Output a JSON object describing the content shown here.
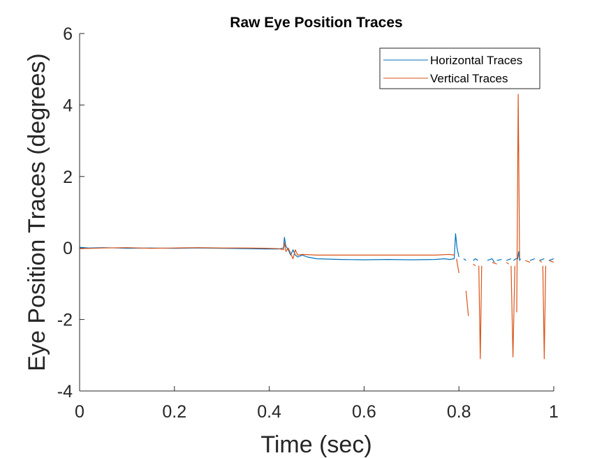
{
  "chart_data": {
    "type": "line",
    "title": "Raw Eye Position Traces",
    "xlabel": "Time (sec)",
    "ylabel": "Eye Position Traces (degrees)",
    "xlim": [
      0,
      1
    ],
    "ylim": [
      -4,
      6
    ],
    "xticks": [
      0,
      0.2,
      0.4,
      0.6,
      0.8,
      1
    ],
    "xtick_labels": [
      "0",
      "0.2",
      "0.4",
      "0.6",
      "0.8",
      "1"
    ],
    "yticks": [
      -4,
      -2,
      0,
      2,
      4,
      6
    ],
    "ytick_labels": [
      "-4",
      "-2",
      "0",
      "2",
      "4",
      "6"
    ],
    "grid": false,
    "legend_position": "top-right",
    "series": [
      {
        "name": "Horizontal Traces",
        "color": "#0072BD",
        "segments": [
          [
            [
              0.0,
              0.02
            ],
            [
              0.02,
              0.0
            ],
            [
              0.05,
              0.01
            ],
            [
              0.08,
              0.0
            ],
            [
              0.1,
              -0.01
            ],
            [
              0.15,
              0.0
            ],
            [
              0.2,
              -0.01
            ],
            [
              0.25,
              0.0
            ],
            [
              0.3,
              -0.01
            ],
            [
              0.35,
              -0.02
            ],
            [
              0.4,
              -0.03
            ],
            [
              0.42,
              -0.03
            ],
            [
              0.43,
              0.0
            ],
            [
              0.432,
              0.3
            ],
            [
              0.435,
              0.05
            ],
            [
              0.44,
              -0.05
            ],
            [
              0.445,
              -0.2
            ],
            [
              0.45,
              -0.05
            ],
            [
              0.455,
              -0.2
            ],
            [
              0.46,
              -0.25
            ],
            [
              0.47,
              -0.2
            ],
            [
              0.48,
              -0.25
            ],
            [
              0.5,
              -0.3
            ],
            [
              0.55,
              -0.32
            ],
            [
              0.6,
              -0.33
            ],
            [
              0.65,
              -0.32
            ],
            [
              0.7,
              -0.33
            ],
            [
              0.75,
              -0.32
            ],
            [
              0.77,
              -0.3
            ],
            [
              0.78,
              -0.32
            ],
            [
              0.79,
              -0.3
            ],
            [
              0.793,
              0.4
            ],
            [
              0.796,
              0.0
            ],
            [
              0.8,
              -0.25
            ]
          ],
          [
            [
              0.81,
              -0.3
            ],
            [
              0.815,
              -0.35
            ]
          ],
          [
            [
              0.83,
              -0.35
            ],
            [
              0.835,
              -0.3
            ],
            [
              0.84,
              -0.35
            ]
          ],
          [
            [
              0.86,
              -0.35
            ],
            [
              0.87,
              -0.3
            ],
            [
              0.875,
              -0.4
            ]
          ],
          [
            [
              0.88,
              -0.35
            ],
            [
              0.89,
              -0.32
            ]
          ],
          [
            [
              0.9,
              -0.35
            ],
            [
              0.91,
              -0.3
            ]
          ],
          [
            [
              0.915,
              -0.35
            ],
            [
              0.92,
              -0.3
            ],
            [
              0.924,
              -0.3
            ],
            [
              0.926,
              -0.1
            ],
            [
              0.928,
              -0.35
            ],
            [
              0.93,
              -0.3
            ]
          ],
          [
            [
              0.95,
              -0.35
            ],
            [
              0.96,
              -0.3
            ]
          ],
          [
            [
              0.97,
              -0.35
            ],
            [
              0.98,
              -0.3
            ]
          ],
          [
            [
              0.99,
              -0.35
            ],
            [
              1.0,
              -0.3
            ]
          ]
        ]
      },
      {
        "name": "Vertical Traces",
        "color": "#D95319",
        "segments": [
          [
            [
              0.0,
              -0.02
            ],
            [
              0.05,
              0.0
            ],
            [
              0.1,
              0.01
            ],
            [
              0.15,
              -0.01
            ],
            [
              0.2,
              0.0
            ],
            [
              0.25,
              0.01
            ],
            [
              0.3,
              0.0
            ],
            [
              0.35,
              0.0
            ],
            [
              0.4,
              -0.01
            ],
            [
              0.42,
              -0.02
            ],
            [
              0.43,
              -0.05
            ],
            [
              0.432,
              0.15
            ],
            [
              0.435,
              -0.1
            ],
            [
              0.44,
              0.0
            ],
            [
              0.445,
              -0.15
            ],
            [
              0.45,
              -0.3
            ],
            [
              0.455,
              -0.05
            ],
            [
              0.46,
              -0.2
            ],
            [
              0.47,
              -0.18
            ],
            [
              0.5,
              -0.2
            ],
            [
              0.55,
              -0.2
            ],
            [
              0.6,
              -0.2
            ],
            [
              0.65,
              -0.2
            ],
            [
              0.7,
              -0.2
            ],
            [
              0.75,
              -0.2
            ],
            [
              0.78,
              -0.18
            ],
            [
              0.79,
              -0.2
            ]
          ],
          [
            [
              0.795,
              -0.3
            ],
            [
              0.8,
              -0.7
            ]
          ],
          [
            [
              0.815,
              -1.2
            ],
            [
              0.82,
              -1.9
            ]
          ],
          [
            [
              0.83,
              -0.45
            ],
            [
              0.835,
              -0.5
            ]
          ],
          [
            [
              0.842,
              -0.5
            ],
            [
              0.845,
              -3.1
            ],
            [
              0.848,
              -0.5
            ]
          ],
          [
            [
              0.87,
              -0.4
            ],
            [
              0.88,
              -0.45
            ]
          ],
          [
            [
              0.9,
              -0.4
            ],
            [
              0.905,
              -0.45
            ]
          ],
          [
            [
              0.91,
              -0.5
            ],
            [
              0.914,
              -3.05
            ],
            [
              0.918,
              -0.5
            ]
          ],
          [
            [
              0.922,
              -1.8
            ],
            [
              0.925,
              4.3
            ],
            [
              0.928,
              -0.3
            ]
          ],
          [
            [
              0.94,
              -0.35
            ],
            [
              0.95,
              -0.4
            ]
          ],
          [
            [
              0.97,
              -0.35
            ],
            [
              0.975,
              -0.4
            ]
          ],
          [
            [
              0.977,
              -0.5
            ],
            [
              0.98,
              -3.1
            ],
            [
              0.983,
              -0.5
            ]
          ],
          [
            [
              0.99,
              -0.35
            ],
            [
              1.0,
              -0.4
            ]
          ]
        ]
      }
    ]
  }
}
